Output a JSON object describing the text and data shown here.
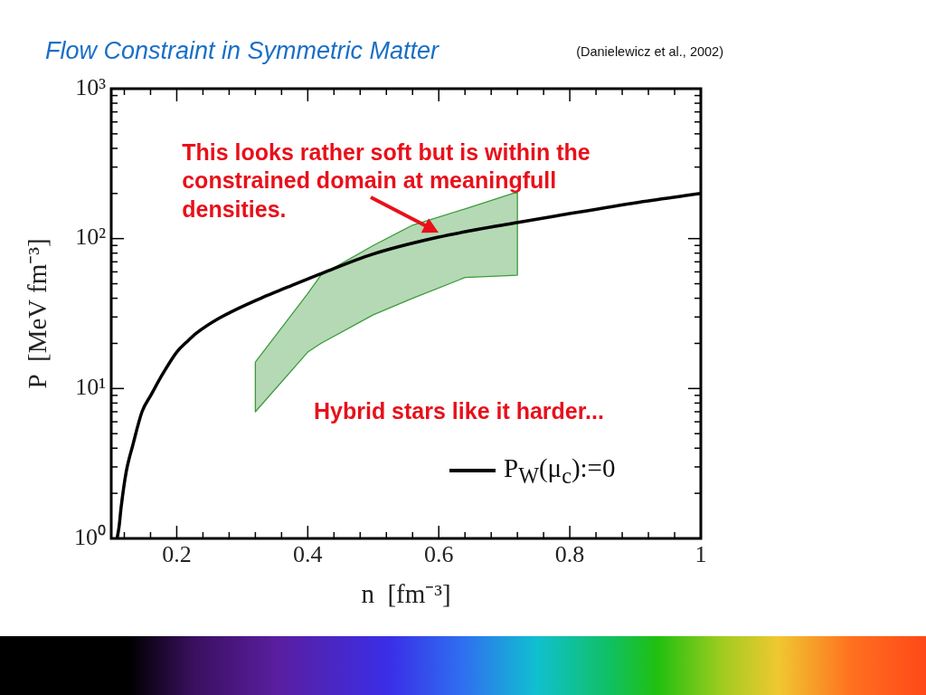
{
  "chart_data": {
    "type": "line",
    "title": "Flow Constraint in Symmetric Matter",
    "xlabel": "n  [fm⁻³]",
    "ylabel": "P  [MeV fm⁻³]",
    "xlim": [
      0.1,
      1
    ],
    "xticks": [
      {
        "value": 0.12,
        "label": null
      },
      {
        "value": 0.16,
        "label": null
      },
      0.2,
      {
        "value": 0.24,
        "label": null
      },
      {
        "value": 0.28,
        "label": null
      },
      {
        "value": 0.32,
        "label": null
      },
      {
        "value": 0.36,
        "label": null
      },
      0.4,
      {
        "value": 0.44,
        "label": null
      },
      {
        "value": 0.48,
        "label": null
      },
      {
        "value": 0.52,
        "label": null
      },
      {
        "value": 0.56,
        "label": null
      },
      0.6,
      {
        "value": 0.64,
        "label": null
      },
      {
        "value": 0.68,
        "label": null
      },
      {
        "value": 0.72,
        "label": null
      },
      {
        "value": 0.76,
        "label": null
      },
      0.8,
      {
        "value": 0.84,
        "label": null
      },
      {
        "value": 0.88,
        "label": null
      },
      {
        "value": 0.92,
        "label": null
      },
      {
        "value": 0.96,
        "label": null
      },
      1
    ],
    "ylim": [
      1,
      1000
    ],
    "yticks": [
      {
        "value": 1,
        "label": "10⁰"
      },
      {
        "value": 2,
        "label": null
      },
      {
        "value": 3,
        "label": null
      },
      {
        "value": 4,
        "label": null
      },
      {
        "value": 5,
        "label": null
      },
      {
        "value": 6,
        "label": null
      },
      {
        "value": 7,
        "label": null
      },
      {
        "value": 8,
        "label": null
      },
      {
        "value": 9,
        "label": null
      },
      {
        "value": 10,
        "label": "10¹"
      },
      {
        "value": 20,
        "label": null
      },
      {
        "value": 30,
        "label": null
      },
      {
        "value": 40,
        "label": null
      },
      {
        "value": 50,
        "label": null
      },
      {
        "value": 60,
        "label": null
      },
      {
        "value": 70,
        "label": null
      },
      {
        "value": 80,
        "label": null
      },
      {
        "value": 90,
        "label": null
      },
      {
        "value": 100,
        "label": "10²"
      },
      {
        "value": 200,
        "label": null
      },
      {
        "value": 300,
        "label": null
      },
      {
        "value": 400,
        "label": null
      },
      {
        "value": 500,
        "label": null
      },
      {
        "value": 600,
        "label": null
      },
      {
        "value": 700,
        "label": null
      },
      {
        "value": 800,
        "label": null
      },
      {
        "value": 900,
        "label": null
      },
      {
        "value": 1000,
        "label": "10³"
      }
    ],
    "log": "y",
    "legend": "bottom right",
    "series": [
      {
        "name": "P$_{W}$(μ$_{c}$):=0",
        "color": "#000000",
        "x": [
          0.109,
          0.112,
          0.115,
          0.123,
          0.133,
          0.147,
          0.161,
          0.179,
          0.2,
          0.215,
          0.23,
          0.265,
          0.332,
          0.367,
          0.423,
          0.498,
          0.598,
          0.715,
          0.78,
          0.906,
          1.0
        ],
        "values": [
          1,
          1.2,
          1.6,
          2.8,
          4.2,
          7,
          9.1,
          12.6,
          17.5,
          20.4,
          23.4,
          29.5,
          40.7,
          47,
          59,
          78.5,
          102,
          127,
          142,
          175,
          200
        ]
      },
      {
        "type": "area",
        "color": "#3c9b3c",
        "x": [
          0.32,
          0.4,
          0.42,
          0.5,
          0.56,
          0.64,
          0.72,
          0.72,
          0.64,
          0.56,
          0.5,
          0.42,
          0.4,
          0.32,
          0.32
        ],
        "values": [
          15,
          43,
          57,
          90,
          123,
          158,
          205,
          57,
          55,
          40,
          31,
          20,
          17.5,
          7,
          15
        ]
      }
    ],
    "annotations": [
      "(Danielewicz et al., 2002)",
      {
        "text": "This looks rather soft but is within the constrained domain at meaningfull densities.",
        "x": 0.6,
        "y": 110
      },
      "Hybrid stars like it harder..."
    ]
  }
}
